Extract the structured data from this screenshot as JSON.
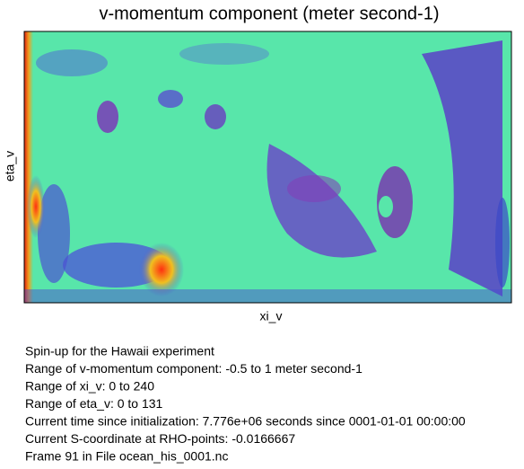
{
  "plot": {
    "title": "v-momentum component (meter second-1)",
    "x_label": "xi_v",
    "y_label": "eta_v"
  },
  "info_lines": [
    "Spin-up for the Hawaii experiment",
    "Range of v-momentum component: -0.5 to 1 meter second-1",
    "Range of xi_v: 0 to 240",
    "Range of eta_v: 0 to 131",
    "Current time since initialization: 7.776e+06 seconds since 0001-01-01 00:00:00",
    "Current S-coordinate at RHO-points: -0.0166667",
    "Frame 91 in File ocean_his_0001.nc"
  ]
}
